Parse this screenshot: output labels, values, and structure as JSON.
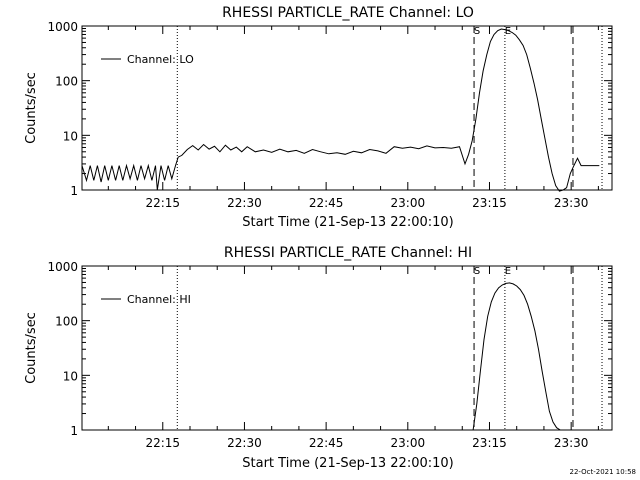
{
  "footer": {
    "timestamp": "22-Oct-2021 10:58"
  },
  "chart_data": [
    {
      "type": "line",
      "title": "RHESSI PARTICLE_RATE Channel: LO",
      "xlabel": "Start Time (21-Sep-13 22:00:10)",
      "ylabel": "Counts/sec",
      "yscale": "log",
      "xlim": [
        "22:00:10",
        "23:37:30"
      ],
      "ylim": [
        1,
        1000
      ],
      "x_ticks": [
        "22:15",
        "22:30",
        "22:45",
        "23:00",
        "23:15",
        "23:30"
      ],
      "y_ticks": [
        "1",
        "10",
        "100",
        "1000"
      ],
      "legend": {
        "label": "Channel: LO",
        "position": "upper-left"
      },
      "markers": [
        {
          "time": "22:17:40",
          "style": "dotted",
          "label": ""
        },
        {
          "time": "23:12:10",
          "style": "dashed",
          "label": "S"
        },
        {
          "time": "23:17:50",
          "style": "dotted",
          "label": "E"
        },
        {
          "time": "23:30:20",
          "style": "dashed",
          "label": ""
        },
        {
          "time": "23:35:40",
          "style": "dotted",
          "label": ""
        }
      ],
      "series": [
        {
          "name": "Channel: LO",
          "x": [
            "22:00:10",
            "22:01:00",
            "22:01:40",
            "22:02:20",
            "22:03:00",
            "22:03:40",
            "22:04:20",
            "22:05:00",
            "22:05:40",
            "22:06:20",
            "22:07:00",
            "22:07:40",
            "22:08:20",
            "22:09:00",
            "22:09:40",
            "22:10:20",
            "22:11:00",
            "22:11:40",
            "22:12:20",
            "22:13:00",
            "22:13:40",
            "22:14:00",
            "22:14:40",
            "22:15:20",
            "22:16:00",
            "22:16:40",
            "22:17:20",
            "22:17:50",
            "22:18:30",
            "22:19:30",
            "22:20:30",
            "22:21:30",
            "22:22:30",
            "22:23:30",
            "22:24:30",
            "22:25:30",
            "22:26:30",
            "22:27:30",
            "22:28:30",
            "22:29:30",
            "22:30:30",
            "22:32:00",
            "22:33:30",
            "22:35:00",
            "22:36:30",
            "22:38:00",
            "22:39:30",
            "22:41:00",
            "22:42:30",
            "22:44:00",
            "22:45:30",
            "22:47:00",
            "22:48:30",
            "22:50:00",
            "22:51:30",
            "22:53:00",
            "22:54:30",
            "22:56:00",
            "22:57:30",
            "22:59:00",
            "23:00:30",
            "23:02:00",
            "23:03:30",
            "23:05:00",
            "23:06:30",
            "23:08:00",
            "23:09:30",
            "23:10:30",
            "23:11:10",
            "23:11:50",
            "23:12:30",
            "23:13:10",
            "23:13:50",
            "23:14:30",
            "23:15:10",
            "23:15:50",
            "23:16:30",
            "23:17:10",
            "23:17:50",
            "23:18:30",
            "23:19:10",
            "23:19:50",
            "23:20:30",
            "23:21:10",
            "23:21:50",
            "23:22:30",
            "23:23:10",
            "23:23:50",
            "23:24:30",
            "23:25:10",
            "23:25:50",
            "23:26:30",
            "23:27:10",
            "23:27:50",
            "23:28:30",
            "23:29:10",
            "23:29:50",
            "23:30:30",
            "23:31:10",
            "23:31:50",
            "23:32:30",
            "23:33:10",
            "23:33:50",
            "23:34:30",
            "23:35:10"
          ],
          "y": [
            2.8,
            1.5,
            2.8,
            1.5,
            2.8,
            1.4,
            2.8,
            1.5,
            2.8,
            1.5,
            2.8,
            1.5,
            2.8,
            1.6,
            2.8,
            1.5,
            2.8,
            1.6,
            2.8,
            1.5,
            2.8,
            1.0,
            2.8,
            1.5,
            2.8,
            1.6,
            2.8,
            4.0,
            4.3,
            5.5,
            6.5,
            5.4,
            6.8,
            5.6,
            6.3,
            5.0,
            6.6,
            5.4,
            6.1,
            5.0,
            6.2,
            5.0,
            5.4,
            4.9,
            5.6,
            5.0,
            5.3,
            4.7,
            5.5,
            5.0,
            4.6,
            4.8,
            4.5,
            5.1,
            4.8,
            5.5,
            5.2,
            4.7,
            6.2,
            5.8,
            6.1,
            5.7,
            6.4,
            5.9,
            6.0,
            5.8,
            6.2,
            3.0,
            4.5,
            8.0,
            20,
            60,
            150,
            300,
            520,
            700,
            820,
            880,
            860,
            820,
            760,
            680,
            560,
            440,
            300,
            170,
            90,
            45,
            20,
            9,
            4,
            2,
            1.2,
            0.95,
            1.0,
            1.1,
            2.0,
            2.8,
            3.8,
            2.8,
            2.8,
            2.8,
            2.8,
            2.8,
            2.8
          ]
        }
      ]
    },
    {
      "type": "line",
      "title": "RHESSI PARTICLE_RATE Channel: HI",
      "xlabel": "Start Time (21-Sep-13 22:00:10)",
      "ylabel": "Counts/sec",
      "yscale": "log",
      "xlim": [
        "22:00:10",
        "23:37:30"
      ],
      "ylim": [
        1,
        1000
      ],
      "x_ticks": [
        "22:15",
        "22:30",
        "22:45",
        "23:00",
        "23:15",
        "23:30"
      ],
      "y_ticks": [
        "1",
        "10",
        "100",
        "1000"
      ],
      "legend": {
        "label": "Channel: HI",
        "position": "upper-left"
      },
      "markers": [
        {
          "time": "22:17:40",
          "style": "dotted",
          "label": ""
        },
        {
          "time": "23:12:10",
          "style": "dashed",
          "label": "S"
        },
        {
          "time": "23:17:50",
          "style": "dotted",
          "label": "E"
        },
        {
          "time": "23:30:20",
          "style": "dashed",
          "label": ""
        },
        {
          "time": "23:35:40",
          "style": "dotted",
          "label": ""
        }
      ],
      "series": [
        {
          "name": "Channel: HI",
          "x": [
            "23:12:00",
            "23:12:40",
            "23:13:20",
            "23:14:00",
            "23:14:40",
            "23:15:20",
            "23:16:00",
            "23:16:40",
            "23:17:20",
            "23:18:00",
            "23:18:40",
            "23:19:20",
            "23:20:00",
            "23:20:40",
            "23:21:20",
            "23:22:00",
            "23:22:40",
            "23:23:20",
            "23:24:00",
            "23:24:40",
            "23:25:20",
            "23:26:00",
            "23:26:40",
            "23:27:20",
            "23:28:00"
          ],
          "y": [
            1.0,
            3.0,
            12,
            45,
            120,
            220,
            320,
            400,
            450,
            480,
            490,
            470,
            430,
            370,
            290,
            200,
            120,
            65,
            30,
            12,
            5,
            2.2,
            1.4,
            1.1,
            1.0
          ]
        }
      ]
    }
  ]
}
